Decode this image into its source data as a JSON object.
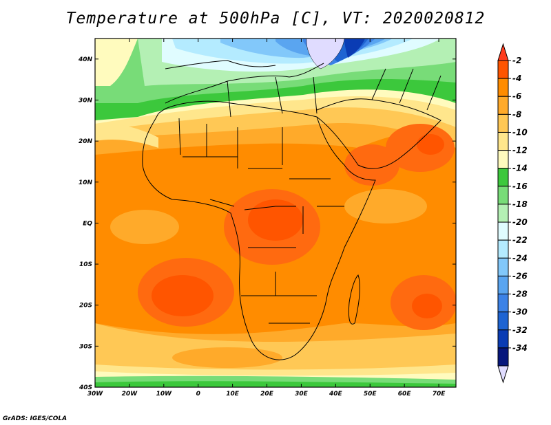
{
  "title": "Temperature at 500hPa [C], VT: 2020020812",
  "credit": "GrADS: IGES/COLA",
  "map": {
    "region": "Africa",
    "variable": "Temperature at 500hPa",
    "units": "C",
    "lon_range": [
      -30,
      75
    ],
    "lat_range": [
      -40,
      45
    ],
    "lon_ticks": [
      {
        "value": -30,
        "label": "30W"
      },
      {
        "value": -20,
        "label": "20W"
      },
      {
        "value": -10,
        "label": "10W"
      },
      {
        "value": 0,
        "label": "0"
      },
      {
        "value": 10,
        "label": "10E"
      },
      {
        "value": 20,
        "label": "20E"
      },
      {
        "value": 30,
        "label": "30E"
      },
      {
        "value": 40,
        "label": "40E"
      },
      {
        "value": 50,
        "label": "50E"
      },
      {
        "value": 60,
        "label": "60E"
      },
      {
        "value": 70,
        "label": "70E"
      }
    ],
    "lat_ticks": [
      {
        "value": 40,
        "label": "40N"
      },
      {
        "value": 30,
        "label": "30N"
      },
      {
        "value": 20,
        "label": "20N"
      },
      {
        "value": 10,
        "label": "10N"
      },
      {
        "value": 0,
        "label": "EQ"
      },
      {
        "value": -10,
        "label": "10S"
      },
      {
        "value": -20,
        "label": "20S"
      },
      {
        "value": -30,
        "label": "30S"
      },
      {
        "value": -40,
        "label": "40S"
      }
    ]
  },
  "colorbar": {
    "levels": [
      {
        "label": "-2",
        "color": "#ff5500"
      },
      {
        "label": "-4",
        "color": "#ff8c00"
      },
      {
        "label": "-6",
        "color": "#ffaa2a"
      },
      {
        "label": "-8",
        "color": "#ffc855"
      },
      {
        "label": "-10",
        "color": "#ffe68c"
      },
      {
        "label": "-12",
        "color": "#fffbbe"
      },
      {
        "label": "-14",
        "color": "#3cc83c"
      },
      {
        "label": "-16",
        "color": "#78dc78"
      },
      {
        "label": "-18",
        "color": "#b4f0b4"
      },
      {
        "label": "-20",
        "color": "#e0fcff"
      },
      {
        "label": "-22",
        "color": "#b4ebff"
      },
      {
        "label": "-24",
        "color": "#82c8fa"
      },
      {
        "label": "-26",
        "color": "#5aa5f0"
      },
      {
        "label": "-28",
        "color": "#3c82e6"
      },
      {
        "label": "-30",
        "color": "#1e64d2"
      },
      {
        "label": "-32",
        "color": "#0a3cb4"
      },
      {
        "label": "-34",
        "color": "#06167c"
      }
    ],
    "top_arrow_color": "#ff3c1e",
    "bottom_arrow_color": "#e0dcff"
  }
}
